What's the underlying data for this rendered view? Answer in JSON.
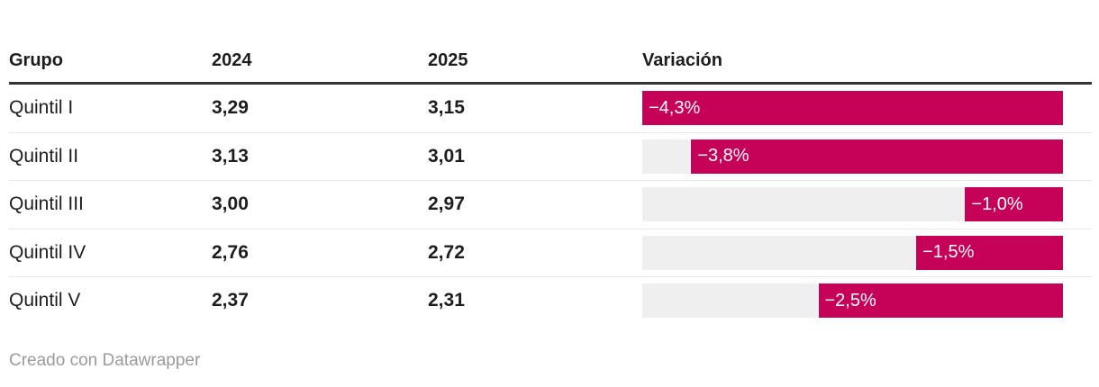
{
  "table": {
    "columns": [
      "Grupo",
      "2024",
      "2025",
      "Variación"
    ],
    "rows": [
      {
        "group": "Quintil I",
        "v2024": "3,29",
        "v2025": "3,15",
        "variation_label": "−4,3%",
        "variation_value": -4.3
      },
      {
        "group": "Quintil II",
        "v2024": "3,13",
        "v2025": "3,01",
        "variation_label": "−3,8%",
        "variation_value": -3.8
      },
      {
        "group": "Quintil III",
        "v2024": "3,00",
        "v2025": "2,97",
        "variation_label": "−1,0%",
        "variation_value": -1.0
      },
      {
        "group": "Quintil IV",
        "v2024": "2,76",
        "v2025": "2,72",
        "variation_label": "−1,5%",
        "variation_value": -1.5
      },
      {
        "group": "Quintil V",
        "v2024": "2,37",
        "v2025": "2,31",
        "variation_label": "−2,5%",
        "variation_value": -2.5
      }
    ]
  },
  "chart_data": {
    "type": "bar",
    "orientation": "horizontal",
    "embedded_in": "table",
    "categories": [
      "Quintil I",
      "Quintil II",
      "Quintil III",
      "Quintil IV",
      "Quintil V"
    ],
    "series": [
      {
        "name": "2024",
        "values": [
          3.29,
          3.13,
          3.0,
          2.76,
          2.37
        ]
      },
      {
        "name": "2025",
        "values": [
          3.15,
          3.01,
          2.97,
          2.72,
          2.31
        ]
      },
      {
        "name": "Variación (%)",
        "values": [
          -4.3,
          -3.8,
          -1.0,
          -1.5,
          -2.5
        ]
      }
    ],
    "bar_column": "Variación",
    "bar_axis_max_abs": 4.3,
    "bar_alignment": "right-baseline-zero",
    "value_labels": [
      "−4,3%",
      "−3,8%",
      "−1,0%",
      "−1,5%",
      "−2,5%"
    ],
    "title": "",
    "xlabel": "",
    "ylabel": "",
    "grid": false,
    "legend": false
  },
  "footer": {
    "text": "Creado con Datawrapper"
  },
  "colors": {
    "bar": "#c50257",
    "track": "#efefef",
    "header_border": "#333333",
    "row_divider": "#e8e8e8",
    "text": "#1d1d1d",
    "bar_label": "#ffffff",
    "footer_text": "#9b9b9b"
  }
}
